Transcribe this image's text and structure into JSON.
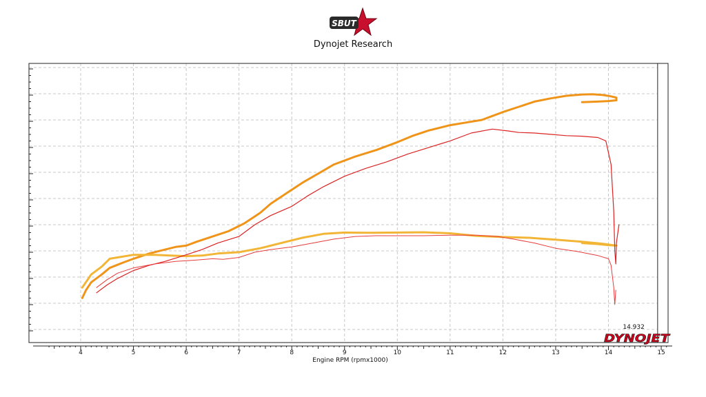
{
  "header": {
    "logo_text": "SBUT",
    "title": "Dynojet Research"
  },
  "chart_data": {
    "type": "line",
    "title": "Dynojet Research",
    "xlabel": "Engine RPM (rpmx1000)",
    "ylabel": "",
    "xlim": [
      3.1,
      15.2
    ],
    "ylim": [
      0,
      10
    ],
    "x_ticks": [
      "4",
      "5",
      "6",
      "7",
      "8",
      "9",
      "10",
      "11",
      "12",
      "13",
      "14",
      "15"
    ],
    "y_tick_labels_visible": false,
    "grid": true,
    "cursor": {
      "x": 14.932,
      "label": "14.932"
    },
    "brand": "DYNOJET",
    "colors": {
      "orange": "#ef9418",
      "yellow": "#f2b535",
      "red": "#dc2222",
      "grid": "#c8c8c8"
    },
    "series": [
      {
        "color": "#ef9418",
        "width": 3,
        "points": [
          [
            4.03,
            1.2
          ],
          [
            4.1,
            1.5
          ],
          [
            4.2,
            1.8
          ],
          [
            4.4,
            2.1
          ],
          [
            4.55,
            2.35
          ],
          [
            4.8,
            2.55
          ],
          [
            5.0,
            2.7
          ],
          [
            5.3,
            2.9
          ],
          [
            5.6,
            3.05
          ],
          [
            5.8,
            3.15
          ],
          [
            6.0,
            3.2
          ],
          [
            6.2,
            3.35
          ],
          [
            6.5,
            3.55
          ],
          [
            6.8,
            3.75
          ],
          [
            7.1,
            4.05
          ],
          [
            7.4,
            4.45
          ],
          [
            7.6,
            4.8
          ],
          [
            7.9,
            5.2
          ],
          [
            8.2,
            5.6
          ],
          [
            8.5,
            5.95
          ],
          [
            8.8,
            6.3
          ],
          [
            9.2,
            6.6
          ],
          [
            9.6,
            6.85
          ],
          [
            10.0,
            7.15
          ],
          [
            10.3,
            7.4
          ],
          [
            10.6,
            7.6
          ],
          [
            11.0,
            7.8
          ],
          [
            11.3,
            7.9
          ],
          [
            11.6,
            8.0
          ],
          [
            11.8,
            8.15
          ],
          [
            12.0,
            8.3
          ],
          [
            12.3,
            8.5
          ],
          [
            12.6,
            8.7
          ],
          [
            12.9,
            8.82
          ],
          [
            13.2,
            8.92
          ],
          [
            13.5,
            8.97
          ],
          [
            13.7,
            8.98
          ],
          [
            13.9,
            8.95
          ],
          [
            14.05,
            8.9
          ],
          [
            14.15,
            8.85
          ],
          [
            14.15,
            8.75
          ],
          [
            14.0,
            8.72
          ],
          [
            13.8,
            8.7
          ],
          [
            13.5,
            8.68
          ]
        ]
      },
      {
        "color": "#f2b535",
        "width": 3,
        "points": [
          [
            4.03,
            1.6
          ],
          [
            4.2,
            2.1
          ],
          [
            4.4,
            2.4
          ],
          [
            4.55,
            2.7
          ],
          [
            4.7,
            2.75
          ],
          [
            5.0,
            2.85
          ],
          [
            5.4,
            2.85
          ],
          [
            5.7,
            2.82
          ],
          [
            6.0,
            2.8
          ],
          [
            6.3,
            2.82
          ],
          [
            6.6,
            2.9
          ],
          [
            7.0,
            2.95
          ],
          [
            7.4,
            3.1
          ],
          [
            7.8,
            3.3
          ],
          [
            8.2,
            3.5
          ],
          [
            8.6,
            3.65
          ],
          [
            9.0,
            3.7
          ],
          [
            9.5,
            3.69
          ],
          [
            10.0,
            3.7
          ],
          [
            10.5,
            3.71
          ],
          [
            11.0,
            3.67
          ],
          [
            11.5,
            3.57
          ],
          [
            12.0,
            3.53
          ],
          [
            12.5,
            3.5
          ],
          [
            13.0,
            3.43
          ],
          [
            13.5,
            3.35
          ],
          [
            13.9,
            3.27
          ],
          [
            14.15,
            3.2
          ],
          [
            14.0,
            3.22
          ],
          [
            13.8,
            3.26
          ],
          [
            13.5,
            3.3
          ]
        ]
      },
      {
        "color": "#dc2222",
        "width": 1.2,
        "points": [
          [
            4.3,
            1.4
          ],
          [
            4.5,
            1.7
          ],
          [
            4.7,
            1.95
          ],
          [
            5.0,
            2.25
          ],
          [
            5.3,
            2.45
          ],
          [
            5.6,
            2.6
          ],
          [
            6.0,
            2.85
          ],
          [
            6.3,
            3.05
          ],
          [
            6.6,
            3.3
          ],
          [
            7.0,
            3.55
          ],
          [
            7.3,
            4.0
          ],
          [
            7.6,
            4.35
          ],
          [
            8.0,
            4.7
          ],
          [
            8.3,
            5.1
          ],
          [
            8.6,
            5.45
          ],
          [
            9.0,
            5.85
          ],
          [
            9.4,
            6.15
          ],
          [
            9.8,
            6.4
          ],
          [
            10.2,
            6.7
          ],
          [
            10.6,
            6.95
          ],
          [
            11.0,
            7.2
          ],
          [
            11.4,
            7.5
          ],
          [
            11.8,
            7.65
          ],
          [
            12.1,
            7.58
          ],
          [
            12.3,
            7.52
          ],
          [
            12.6,
            7.5
          ],
          [
            12.9,
            7.45
          ],
          [
            13.2,
            7.4
          ],
          [
            13.5,
            7.38
          ],
          [
            13.8,
            7.33
          ],
          [
            13.95,
            7.2
          ],
          [
            14.05,
            6.3
          ],
          [
            14.1,
            4.5
          ],
          [
            14.12,
            3.0
          ],
          [
            14.14,
            2.5
          ],
          [
            14.15,
            3.3
          ],
          [
            14.2,
            4.0
          ]
        ]
      },
      {
        "color": "#e83a3a",
        "width": 1,
        "points": [
          [
            4.3,
            1.6
          ],
          [
            4.5,
            1.9
          ],
          [
            4.7,
            2.15
          ],
          [
            5.0,
            2.35
          ],
          [
            5.4,
            2.5
          ],
          [
            5.8,
            2.6
          ],
          [
            6.2,
            2.65
          ],
          [
            6.5,
            2.7
          ],
          [
            6.7,
            2.68
          ],
          [
            7.0,
            2.75
          ],
          [
            7.3,
            2.95
          ],
          [
            7.6,
            3.05
          ],
          [
            8.0,
            3.15
          ],
          [
            8.4,
            3.3
          ],
          [
            8.8,
            3.45
          ],
          [
            9.2,
            3.55
          ],
          [
            9.6,
            3.58
          ],
          [
            10.0,
            3.58
          ],
          [
            10.5,
            3.58
          ],
          [
            11.0,
            3.6
          ],
          [
            11.5,
            3.6
          ],
          [
            11.9,
            3.55
          ],
          [
            12.2,
            3.45
          ],
          [
            12.6,
            3.3
          ],
          [
            13.0,
            3.1
          ],
          [
            13.4,
            2.98
          ],
          [
            13.8,
            2.82
          ],
          [
            14.0,
            2.7
          ],
          [
            14.05,
            2.45
          ],
          [
            14.1,
            1.6
          ],
          [
            14.12,
            0.95
          ],
          [
            14.14,
            1.5
          ]
        ]
      }
    ]
  }
}
